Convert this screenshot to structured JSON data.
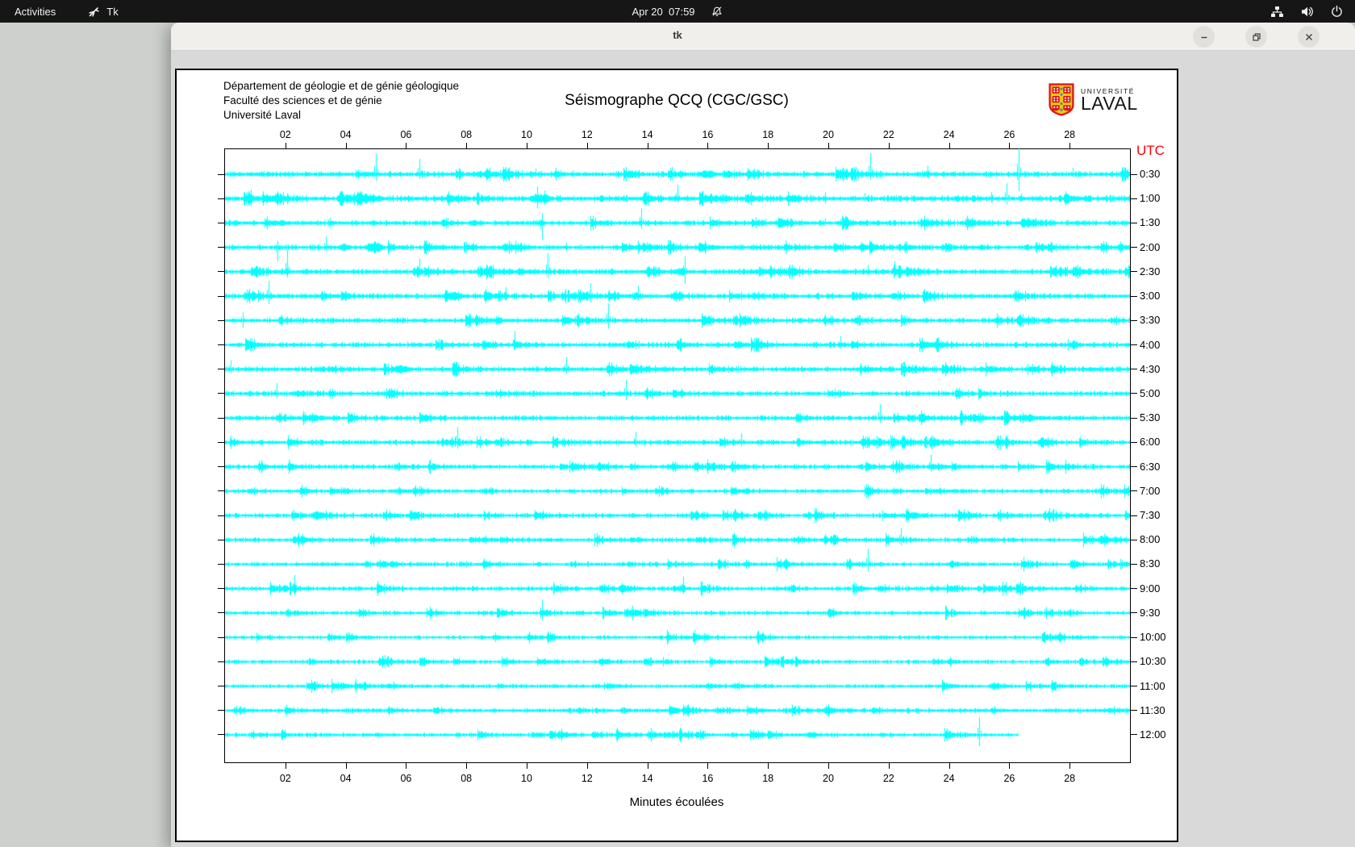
{
  "topbar": {
    "activities_label": "Activities",
    "app_name": "Tk",
    "clock": "Apr 20  07:59"
  },
  "window": {
    "title": "tk"
  },
  "header": {
    "dept_lines": [
      "Département de géologie et de génie géologique",
      "Faculté des sciences et de génie",
      "Université Laval"
    ],
    "logo_line1": "UNIVERSITÉ",
    "logo_line2": "LAVAL"
  },
  "chart_data": {
    "type": "line",
    "title": "Séismographe QCQ (CGC/GSC)",
    "xlabel": "Minutes écoulées",
    "right_axis_label": "UTC",
    "x_range": [
      0,
      30
    ],
    "x_ticks": [
      {
        "m": 2,
        "label": "02"
      },
      {
        "m": 4,
        "label": "04"
      },
      {
        "m": 6,
        "label": "06"
      },
      {
        "m": 8,
        "label": "08"
      },
      {
        "m": 10,
        "label": "10"
      },
      {
        "m": 12,
        "label": "12"
      },
      {
        "m": 14,
        "label": "14"
      },
      {
        "m": 16,
        "label": "16"
      },
      {
        "m": 18,
        "label": "18"
      },
      {
        "m": 20,
        "label": "20"
      },
      {
        "m": 22,
        "label": "22"
      },
      {
        "m": 24,
        "label": "24"
      },
      {
        "m": 26,
        "label": "26"
      },
      {
        "m": 28,
        "label": "28"
      }
    ],
    "trace_color": "#00ffff",
    "utc_color": "#ff0000",
    "rows": [
      {
        "label": "0:30",
        "noise": 2.2,
        "spikes": [
          [
            5.0,
            26,
            8
          ],
          [
            6.45,
            19,
            6
          ],
          [
            10.3,
            7,
            4
          ],
          [
            14.8,
            9,
            5
          ],
          [
            21.4,
            26,
            7
          ],
          [
            23.3,
            11,
            5
          ],
          [
            26.3,
            33,
            21
          ],
          [
            28.1,
            8,
            4
          ]
        ],
        "blobs": [
          [
            8.4,
            0.25,
            4
          ],
          [
            16.0,
            0.3,
            5
          ]
        ]
      },
      {
        "label": "1:00",
        "noise": 2.3,
        "spikes": [
          [
            0.85,
            11,
            9
          ],
          [
            10.35,
            15,
            12
          ],
          [
            10.6,
            10,
            8
          ],
          [
            15.0,
            17,
            5
          ],
          [
            19.9,
            8,
            6
          ],
          [
            21.2,
            7,
            4
          ],
          [
            25.4,
            8,
            5
          ],
          [
            25.9,
            19,
            7
          ],
          [
            26.4,
            6,
            4
          ]
        ],
        "blobs": [
          [
            10.45,
            0.4,
            6
          ]
        ]
      },
      {
        "label": "1:30",
        "noise": 2.0,
        "spikes": [
          [
            10.5,
            12,
            21
          ],
          [
            13.8,
            18,
            7
          ],
          [
            19.9,
            6,
            4
          ],
          [
            20.4,
            5,
            4
          ]
        ],
        "blobs": [
          [
            18.5,
            0.3,
            4
          ]
        ]
      },
      {
        "label": "2:00",
        "noise": 2.0,
        "spikes": [
          [
            1.75,
            8,
            17
          ],
          [
            3.35,
            13,
            5
          ],
          [
            11.3,
            6,
            4
          ]
        ],
        "blobs": [
          [
            3.95,
            0.2,
            5
          ],
          [
            4.95,
            0.3,
            7
          ]
        ]
      },
      {
        "label": "2:30",
        "noise": 2.1,
        "spikes": [
          [
            2.05,
            27,
            7
          ],
          [
            6.45,
            16,
            5
          ],
          [
            10.7,
            23,
            8
          ],
          [
            15.25,
            19,
            15
          ],
          [
            21.3,
            8,
            5
          ],
          [
            22.2,
            13,
            5
          ]
        ],
        "blobs": [
          [
            15.05,
            0.25,
            5
          ]
        ]
      },
      {
        "label": "3:00",
        "noise": 2.1,
        "spikes": [
          [
            1.45,
            19,
            10
          ],
          [
            9.3,
            11,
            5
          ],
          [
            12.1,
            16,
            8
          ],
          [
            13.7,
            13,
            6
          ]
        ],
        "blobs": [
          [
            7.6,
            0.3,
            6
          ]
        ]
      },
      {
        "label": "3:30",
        "noise": 2.0,
        "spikes": [
          [
            0.6,
            10,
            9
          ],
          [
            12.7,
            21,
            10
          ]
        ],
        "blobs": []
      },
      {
        "label": "4:00",
        "noise": 2.0,
        "spikes": [
          [
            9.6,
            17,
            6
          ],
          [
            20.4,
            11,
            5
          ]
        ],
        "blobs": [
          [
            23.3,
            0.3,
            4
          ]
        ]
      },
      {
        "label": "4:30",
        "noise": 2.1,
        "spikes": [
          [
            0.2,
            11,
            5
          ],
          [
            11.3,
            15,
            6
          ]
        ],
        "blobs": [
          [
            5.85,
            0.3,
            5
          ]
        ]
      },
      {
        "label": "5:00",
        "noise": 2.0,
        "spikes": [
          [
            1.7,
            13,
            6
          ],
          [
            13.3,
            17,
            8
          ]
        ],
        "blobs": []
      },
      {
        "label": "5:30",
        "noise": 1.9,
        "spikes": [
          [
            21.7,
            17,
            6
          ]
        ],
        "blobs": []
      },
      {
        "label": "6:00",
        "noise": 1.9,
        "spikes": [
          [
            7.7,
            19,
            8
          ],
          [
            13.6,
            13,
            6
          ],
          [
            17.1,
            11,
            5
          ]
        ],
        "blobs": []
      },
      {
        "label": "6:30",
        "noise": 1.8,
        "spikes": [
          [
            23.4,
            15,
            6
          ]
        ],
        "blobs": [
          [
            17.2,
            0.2,
            3
          ]
        ]
      },
      {
        "label": "7:00",
        "noise": 1.7,
        "spikes": [],
        "blobs": []
      },
      {
        "label": "7:30",
        "noise": 1.8,
        "spikes": [],
        "blobs": [
          [
            3.05,
            0.25,
            5
          ]
        ]
      },
      {
        "label": "8:00",
        "noise": 1.7,
        "spikes": [
          [
            22.4,
            15,
            7
          ]
        ],
        "blobs": []
      },
      {
        "label": "8:30",
        "noise": 1.6,
        "spikes": [
          [
            21.3,
            19,
            9
          ]
        ],
        "blobs": []
      },
      {
        "label": "9:00",
        "noise": 1.7,
        "spikes": [
          [
            2.3,
            17,
            8
          ],
          [
            15.2,
            15,
            6
          ]
        ],
        "blobs": []
      },
      {
        "label": "9:30",
        "noise": 1.6,
        "spikes": [
          [
            10.5,
            17,
            9
          ]
        ],
        "blobs": []
      },
      {
        "label": "10:00",
        "noise": 1.5,
        "spikes": [],
        "blobs": []
      },
      {
        "label": "10:30",
        "noise": 1.5,
        "spikes": [],
        "blobs": []
      },
      {
        "label": "11:00",
        "noise": 1.5,
        "spikes": [],
        "blobs": []
      },
      {
        "label": "11:30",
        "noise": 1.7,
        "spikes": [],
        "blobs": []
      },
      {
        "label": "12:00",
        "noise": 1.6,
        "spikes": [
          [
            25.0,
            22,
            14
          ]
        ],
        "blobs": [],
        "end": 26.3
      }
    ]
  }
}
